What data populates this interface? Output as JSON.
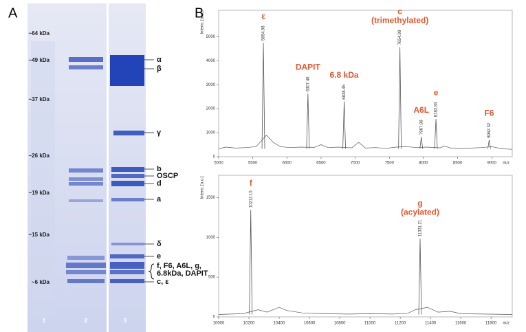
{
  "panel_labels": [
    "A",
    "B"
  ],
  "gel": {
    "markers": [
      {
        "label": "~64 kDa"
      },
      {
        "label": "~49 kDa"
      },
      {
        "label": "~37 kDa"
      },
      {
        "label": "~26 kDa"
      },
      {
        "label": "~19 kDa"
      },
      {
        "label": "~15 kDa"
      },
      {
        "label": "~6 kDa"
      }
    ],
    "lanes": [
      "1",
      "2",
      "3"
    ],
    "bands": [
      "α",
      "β",
      "γ",
      "b",
      "OSCP",
      "d",
      "a",
      "δ",
      "e",
      "f, F6, A6L, g,",
      "6.8kDa, DAPIT",
      "c, ε"
    ]
  },
  "chart_data": [
    {
      "type": "line",
      "y_label": "Intens. [a.u.]",
      "x_label": "m/z",
      "color": "#555555",
      "annotation_color": "#e2562e",
      "xlim": [
        5000,
        9300
      ],
      "xticks": [
        5000,
        5500,
        6000,
        6500,
        7000,
        7500,
        8000,
        8500,
        9000
      ],
      "ylim": [
        0,
        6100
      ],
      "yticks": [
        0,
        1000,
        2000,
        3000,
        4000,
        5000
      ],
      "x": [
        5000,
        5100,
        5250,
        5400,
        5550,
        5700,
        5800,
        5900,
        6050,
        6200,
        6400,
        6500,
        6600,
        6750,
        6950,
        7050,
        7150,
        7300,
        7450,
        7600,
        7750,
        7900,
        8050,
        8250,
        8300,
        8400,
        8550,
        8700,
        8850,
        9000,
        9150,
        9300
      ],
      "values": [
        330,
        400,
        360,
        380,
        420,
        900,
        600,
        420,
        380,
        400,
        390,
        500,
        380,
        400,
        370,
        600,
        360,
        380,
        350,
        400,
        420,
        380,
        400,
        370,
        450,
        360,
        340,
        360,
        380,
        420,
        330,
        310
      ],
      "peaks": [
        {
          "x": 5654.98,
          "y": 4750,
          "name_lines": [
            "ε"
          ]
        },
        {
          "x": 6307.46,
          "y": 2630,
          "name_lines": [
            "DAPIT"
          ]
        },
        {
          "x": 6838.45,
          "y": 2300,
          "name_lines": [
            "6.8 kDa"
          ]
        },
        {
          "x": 7654.98,
          "y": 4570,
          "name_lines": [
            "c",
            "(trimethylated)"
          ]
        },
        {
          "x": 7967.98,
          "y": 830,
          "name_lines": [
            "A6L"
          ]
        },
        {
          "x": 8182.83,
          "y": 1570,
          "name_lines": [
            "e"
          ]
        },
        {
          "x": 8962.32,
          "y": 700,
          "name_lines": [
            "F6"
          ]
        }
      ]
    },
    {
      "type": "line",
      "y_label": "Intens. [a.u.]",
      "x_label": "m/z",
      "color": "#555555",
      "annotation_color": "#e2562e",
      "xlim": [
        10000,
        11940
      ],
      "xticks": [
        10000,
        10200,
        10400,
        10600,
        10800,
        11000,
        11200,
        11400,
        11600,
        11800
      ],
      "ylim": [
        0,
        1780
      ],
      "yticks": [
        0,
        500,
        1000,
        1500
      ],
      "x": [
        10000,
        10080,
        10160,
        10260,
        10320,
        10400,
        10450,
        10550,
        10700,
        10850,
        11000,
        11150,
        11250,
        11300,
        11380,
        11450,
        11530,
        11600,
        11750,
        11940
      ],
      "values": [
        30,
        35,
        40,
        90,
        60,
        120,
        80,
        50,
        40,
        35,
        40,
        35,
        45,
        90,
        120,
        60,
        70,
        40,
        35,
        30
      ],
      "peaks": [
        {
          "x": 10212.15,
          "y": 1345,
          "name_lines": [
            "f"
          ]
        },
        {
          "x": 11331.21,
          "y": 983,
          "name_lines": [
            "g",
            "(acylated)"
          ]
        }
      ]
    }
  ]
}
